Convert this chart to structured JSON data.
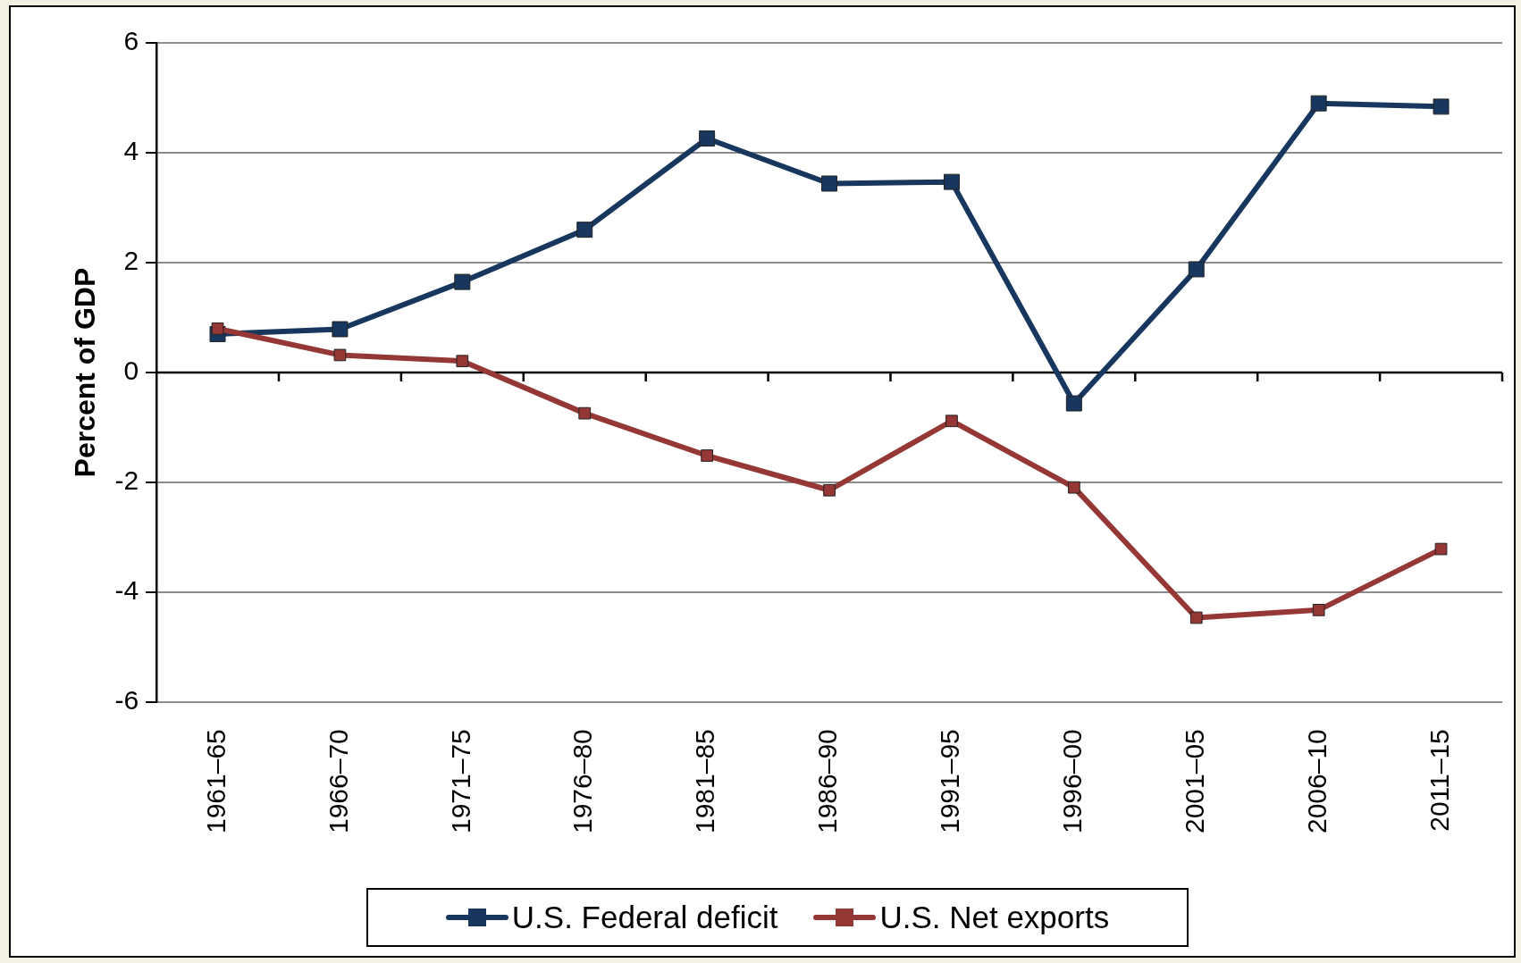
{
  "chart_data": {
    "type": "line",
    "ylabel": "Percent of GDP",
    "categories": [
      "1961–65",
      "1966–70",
      "1971–75",
      "1976–80",
      "1981–85",
      "1986–90",
      "1991–95",
      "1996–00",
      "2001–05",
      "2006–10",
      "2011–15"
    ],
    "series": [
      {
        "name": "U.S. Federal deficit",
        "color": "#17375e",
        "values": [
          0.7,
          0.79,
          1.65,
          2.6,
          4.26,
          3.44,
          3.47,
          -0.56,
          1.88,
          4.9,
          4.84
        ]
      },
      {
        "name": "U.S. Net exports",
        "color": "#953735",
        "values": [
          0.8,
          0.32,
          0.21,
          -0.74,
          -1.51,
          -2.14,
          -0.88,
          -2.09,
          -4.46,
          -4.32,
          -3.21
        ]
      }
    ],
    "ylim": [
      -6,
      6
    ],
    "yticks": [
      -6,
      -4,
      -2,
      0,
      2,
      4,
      6
    ],
    "grid": "y",
    "legend": "bottom",
    "marker": "square",
    "line_style": "solid"
  }
}
